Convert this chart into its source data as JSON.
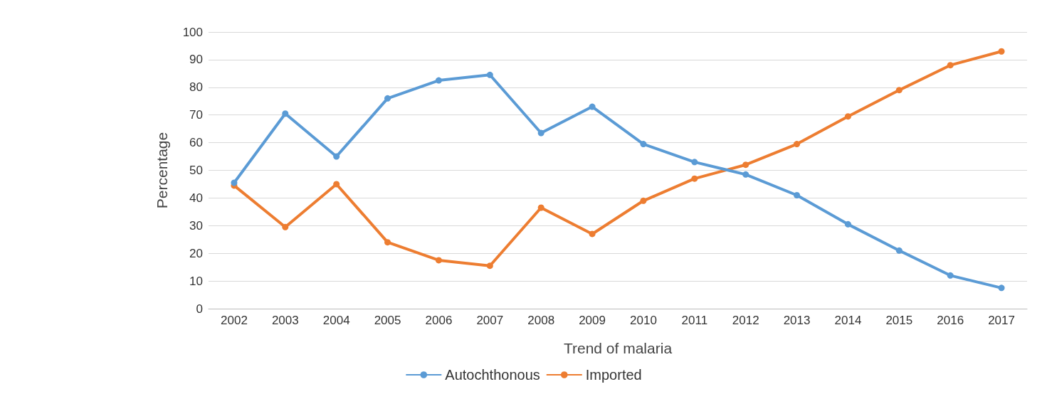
{
  "chart_data": {
    "type": "line",
    "xlabel": "Trend of malaria",
    "ylabel": "Percentage",
    "categories": [
      "2002",
      "2003",
      "2004",
      "2005",
      "2006",
      "2007",
      "2008",
      "2009",
      "2010",
      "2011",
      "2012",
      "2013",
      "2014",
      "2015",
      "2016",
      "2017"
    ],
    "series": [
      {
        "name": "Autochthonous",
        "color": "#5b9bd5",
        "values": [
          45.5,
          70.5,
          55,
          76,
          82.5,
          84.5,
          63.5,
          73,
          59.5,
          53,
          48.5,
          41,
          30.5,
          21,
          12,
          7.5
        ]
      },
      {
        "name": "Imported",
        "color": "#ed7d31",
        "values": [
          44.5,
          29.5,
          45,
          24,
          17.5,
          15.5,
          36.5,
          27,
          39,
          47,
          52,
          59.5,
          69.5,
          79,
          88,
          93
        ]
      }
    ],
    "ylim": [
      0,
      100
    ],
    "yticks": [
      0,
      10,
      20,
      30,
      40,
      50,
      60,
      70,
      80,
      90,
      100
    ],
    "grid": "y",
    "legend": "bottom",
    "marker": "circle",
    "line_style": "solid"
  }
}
